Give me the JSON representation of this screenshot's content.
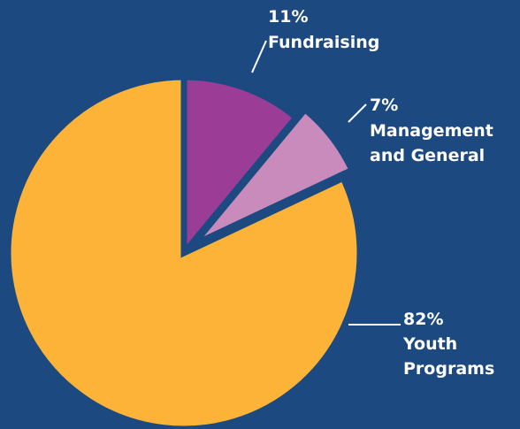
{
  "colors": {
    "background": "#1c4a80",
    "separator": "#1c4a80",
    "leader": "#ffffff"
  },
  "chart_data": {
    "type": "pie",
    "title": "",
    "slices": [
      {
        "label": "Fundraising",
        "percent_label": "11%",
        "value": 11,
        "color": "#9b3d97"
      },
      {
        "label": "Management and General",
        "percent_label": "7%",
        "value": 7,
        "color": "#c98bbb"
      },
      {
        "label": "Youth Programs",
        "percent_label": "82%",
        "value": 82,
        "color": "#fcb337"
      }
    ],
    "legend": "none"
  }
}
